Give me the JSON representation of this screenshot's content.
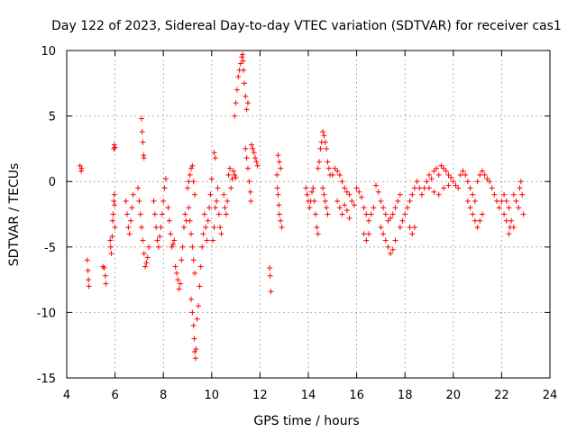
{
  "chart_data": {
    "type": "scatter",
    "title": "Day 122 of 2023, Sidereal Day-to-day VTEC variation (SDTVAR) for receiver cas1",
    "xlabel": "GPS time / hours",
    "ylabel": "SDTVAR / TECUs",
    "xlim": [
      4,
      24
    ],
    "ylim": [
      -15,
      10
    ],
    "xticks": [
      4,
      6,
      8,
      10,
      12,
      14,
      16,
      18,
      20,
      22,
      24
    ],
    "yticks": [
      -15,
      -10,
      -5,
      0,
      5,
      10
    ],
    "grid": true,
    "marker": "+",
    "color": "#ff0000",
    "series": [
      {
        "name": "SDTVAR",
        "points": [
          [
            4.55,
            1.2
          ],
          [
            4.6,
            0.8
          ],
          [
            4.62,
            1.0
          ],
          [
            4.85,
            -6.0
          ],
          [
            4.88,
            -6.8
          ],
          [
            4.9,
            -7.5
          ],
          [
            4.92,
            -8.0
          ],
          [
            5.5,
            -6.5
          ],
          [
            5.55,
            -6.6
          ],
          [
            5.6,
            -7.2
          ],
          [
            5.62,
            -7.8
          ],
          [
            5.8,
            -4.5
          ],
          [
            5.82,
            -5.0
          ],
          [
            5.85,
            -5.5
          ],
          [
            5.88,
            -4.2
          ],
          [
            5.9,
            -3.0
          ],
          [
            5.92,
            -2.5
          ],
          [
            5.95,
            -1.5
          ],
          [
            5.97,
            -1.0
          ],
          [
            5.98,
            -1.8
          ],
          [
            6.0,
            -3.5
          ],
          [
            5.95,
            2.5
          ],
          [
            5.97,
            2.8
          ],
          [
            6.0,
            2.6
          ],
          [
            6.45,
            -1.5
          ],
          [
            6.5,
            -2.5
          ],
          [
            6.55,
            -3.5
          ],
          [
            6.6,
            -4.0
          ],
          [
            6.65,
            -3.0
          ],
          [
            6.7,
            -2.0
          ],
          [
            6.75,
            -1.0
          ],
          [
            6.95,
            -0.5
          ],
          [
            7.0,
            -1.5
          ],
          [
            7.05,
            -2.5
          ],
          [
            7.1,
            -3.5
          ],
          [
            7.15,
            -4.5
          ],
          [
            7.2,
            -5.5
          ],
          [
            7.25,
            -6.5
          ],
          [
            7.3,
            -6.2
          ],
          [
            7.35,
            -5.8
          ],
          [
            7.4,
            -5.0
          ],
          [
            7.1,
            4.8
          ],
          [
            7.12,
            3.8
          ],
          [
            7.15,
            3.0
          ],
          [
            7.18,
            2.0
          ],
          [
            7.2,
            1.8
          ],
          [
            7.6,
            -1.5
          ],
          [
            7.65,
            -2.5
          ],
          [
            7.7,
            -3.5
          ],
          [
            7.75,
            -4.5
          ],
          [
            7.8,
            -5.0
          ],
          [
            7.85,
            -4.2
          ],
          [
            7.9,
            -3.5
          ],
          [
            7.95,
            -2.5
          ],
          [
            8.0,
            -1.5
          ],
          [
            8.05,
            -0.5
          ],
          [
            8.1,
            0.2
          ],
          [
            8.2,
            -2.0
          ],
          [
            8.25,
            -3.0
          ],
          [
            8.3,
            -4.0
          ],
          [
            8.35,
            -5.0
          ],
          [
            8.4,
            -4.8
          ],
          [
            8.45,
            -4.5
          ],
          [
            8.5,
            -6.5
          ],
          [
            8.55,
            -7.0
          ],
          [
            8.6,
            -7.5
          ],
          [
            8.65,
            -8.2
          ],
          [
            8.7,
            -7.8
          ],
          [
            8.75,
            -6.0
          ],
          [
            8.8,
            -5.0
          ],
          [
            8.85,
            -3.5
          ],
          [
            8.9,
            -2.5
          ],
          [
            8.95,
            -3.0
          ],
          [
            9.0,
            -0.5
          ],
          [
            9.05,
            0.0
          ],
          [
            9.1,
            0.5
          ],
          [
            9.15,
            1.0
          ],
          [
            9.2,
            1.2
          ],
          [
            9.25,
            0.0
          ],
          [
            9.3,
            -1.0
          ],
          [
            9.05,
            -2.0
          ],
          [
            9.1,
            -3.0
          ],
          [
            9.15,
            -4.0
          ],
          [
            9.2,
            -5.0
          ],
          [
            9.25,
            -6.0
          ],
          [
            9.3,
            -7.0
          ],
          [
            9.15,
            -9.0
          ],
          [
            9.2,
            -10.0
          ],
          [
            9.25,
            -11.0
          ],
          [
            9.28,
            -12.0
          ],
          [
            9.3,
            -13.0
          ],
          [
            9.33,
            -13.5
          ],
          [
            9.35,
            -12.8
          ],
          [
            9.4,
            -10.5
          ],
          [
            9.45,
            -9.5
          ],
          [
            9.5,
            -8.0
          ],
          [
            9.55,
            -6.5
          ],
          [
            9.6,
            -5.0
          ],
          [
            9.65,
            -4.0
          ],
          [
            9.7,
            -2.5
          ],
          [
            9.75,
            -3.5
          ],
          [
            9.8,
            -4.5
          ],
          [
            9.85,
            -3.0
          ],
          [
            9.9,
            -2.0
          ],
          [
            9.95,
            -1.0
          ],
          [
            10.0,
            0.2
          ],
          [
            10.05,
            -4.5
          ],
          [
            10.1,
            -3.5
          ],
          [
            10.15,
            -2.0
          ],
          [
            10.2,
            -1.5
          ],
          [
            10.25,
            -0.5
          ],
          [
            10.3,
            -2.5
          ],
          [
            10.35,
            -3.5
          ],
          [
            10.4,
            -4.0
          ],
          [
            10.1,
            2.2
          ],
          [
            10.15,
            1.8
          ],
          [
            10.5,
            -1.0
          ],
          [
            10.55,
            -2.0
          ],
          [
            10.6,
            -2.5
          ],
          [
            10.65,
            -1.5
          ],
          [
            10.7,
            0.5
          ],
          [
            10.75,
            1.0
          ],
          [
            10.8,
            -0.5
          ],
          [
            10.85,
            0.2
          ],
          [
            10.9,
            0.8
          ],
          [
            10.95,
            0.5
          ],
          [
            11.0,
            0.3
          ],
          [
            10.95,
            5.0
          ],
          [
            11.0,
            6.0
          ],
          [
            11.05,
            7.0
          ],
          [
            11.1,
            8.0
          ],
          [
            11.15,
            8.5
          ],
          [
            11.2,
            9.0
          ],
          [
            11.25,
            9.5
          ],
          [
            11.28,
            9.7
          ],
          [
            11.3,
            9.2
          ],
          [
            11.32,
            8.5
          ],
          [
            11.35,
            7.5
          ],
          [
            11.4,
            6.5
          ],
          [
            11.45,
            5.5
          ],
          [
            11.5,
            6.0
          ],
          [
            11.4,
            2.5
          ],
          [
            11.45,
            1.8
          ],
          [
            11.5,
            1.0
          ],
          [
            11.55,
            0.0
          ],
          [
            11.6,
            -0.8
          ],
          [
            11.62,
            -1.5
          ],
          [
            11.65,
            2.8
          ],
          [
            11.7,
            2.5
          ],
          [
            11.75,
            2.2
          ],
          [
            11.8,
            1.8
          ],
          [
            11.85,
            1.5
          ],
          [
            11.9,
            1.2
          ],
          [
            12.4,
            -6.6
          ],
          [
            12.42,
            -7.2
          ],
          [
            12.45,
            -8.4
          ],
          [
            12.7,
            0.5
          ],
          [
            12.72,
            -0.5
          ],
          [
            12.75,
            -1.0
          ],
          [
            12.78,
            -1.8
          ],
          [
            12.8,
            -2.5
          ],
          [
            12.85,
            -3.0
          ],
          [
            12.9,
            -3.5
          ],
          [
            12.75,
            2.0
          ],
          [
            12.8,
            1.5
          ],
          [
            12.85,
            1.0
          ],
          [
            13.9,
            -0.5
          ],
          [
            13.95,
            -1.0
          ],
          [
            14.0,
            -1.5
          ],
          [
            14.05,
            -2.0
          ],
          [
            14.1,
            -1.5
          ],
          [
            14.15,
            -0.8
          ],
          [
            14.2,
            -0.5
          ],
          [
            14.25,
            -1.5
          ],
          [
            14.3,
            -2.5
          ],
          [
            14.35,
            -3.5
          ],
          [
            14.4,
            -4.0
          ],
          [
            14.4,
            1.0
          ],
          [
            14.45,
            1.5
          ],
          [
            14.5,
            2.5
          ],
          [
            14.55,
            3.0
          ],
          [
            14.6,
            3.8
          ],
          [
            14.65,
            3.5
          ],
          [
            14.7,
            3.0
          ],
          [
            14.75,
            2.5
          ],
          [
            14.8,
            1.5
          ],
          [
            14.85,
            1.0
          ],
          [
            14.9,
            0.5
          ],
          [
            14.6,
            -0.5
          ],
          [
            14.65,
            -1.0
          ],
          [
            14.7,
            -1.5
          ],
          [
            14.75,
            -2.0
          ],
          [
            14.8,
            -2.5
          ],
          [
            15.0,
            0.5
          ],
          [
            15.1,
            1.0
          ],
          [
            15.2,
            0.8
          ],
          [
            15.3,
            0.5
          ],
          [
            15.4,
            0.0
          ],
          [
            15.5,
            -0.5
          ],
          [
            15.6,
            -0.8
          ],
          [
            15.7,
            -1.0
          ],
          [
            15.8,
            -1.5
          ],
          [
            15.9,
            -1.8
          ],
          [
            15.2,
            -1.5
          ],
          [
            15.3,
            -2.0
          ],
          [
            15.4,
            -2.5
          ],
          [
            15.5,
            -1.8
          ],
          [
            15.6,
            -2.2
          ],
          [
            15.7,
            -2.8
          ],
          [
            16.0,
            -0.5
          ],
          [
            16.1,
            -0.8
          ],
          [
            16.2,
            -1.2
          ],
          [
            16.3,
            -2.0
          ],
          [
            16.4,
            -2.5
          ],
          [
            16.5,
            -3.0
          ],
          [
            16.6,
            -2.5
          ],
          [
            16.7,
            -2.0
          ],
          [
            16.3,
            -4.0
          ],
          [
            16.4,
            -4.5
          ],
          [
            16.5,
            -4.0
          ],
          [
            16.8,
            -0.3
          ],
          [
            16.9,
            -0.8
          ],
          [
            17.0,
            -1.5
          ],
          [
            17.1,
            -2.0
          ],
          [
            17.2,
            -2.5
          ],
          [
            17.3,
            -3.0
          ],
          [
            17.4,
            -2.8
          ],
          [
            17.5,
            -2.5
          ],
          [
            17.6,
            -2.0
          ],
          [
            17.7,
            -1.5
          ],
          [
            17.8,
            -1.0
          ],
          [
            17.0,
            -3.5
          ],
          [
            17.1,
            -4.0
          ],
          [
            17.2,
            -4.5
          ],
          [
            17.3,
            -5.0
          ],
          [
            17.4,
            -5.5
          ],
          [
            17.5,
            -5.2
          ],
          [
            17.6,
            -4.5
          ],
          [
            17.8,
            -3.5
          ],
          [
            17.9,
            -3.0
          ],
          [
            18.0,
            -2.5
          ],
          [
            18.1,
            -2.0
          ],
          [
            18.2,
            -1.5
          ],
          [
            18.3,
            -1.0
          ],
          [
            18.4,
            -0.5
          ],
          [
            18.2,
            -3.5
          ],
          [
            18.3,
            -4.0
          ],
          [
            18.4,
            -3.5
          ],
          [
            18.5,
            0.0
          ],
          [
            18.6,
            -0.5
          ],
          [
            18.7,
            -1.0
          ],
          [
            18.8,
            -0.5
          ],
          [
            18.9,
            0.0
          ],
          [
            19.0,
            0.5
          ],
          [
            19.1,
            0.2
          ],
          [
            19.2,
            0.8
          ],
          [
            19.3,
            1.0
          ],
          [
            19.4,
            0.5
          ],
          [
            19.5,
            1.2
          ],
          [
            19.6,
            1.0
          ],
          [
            19.7,
            0.8
          ],
          [
            19.8,
            0.5
          ],
          [
            19.9,
            0.3
          ],
          [
            20.0,
            0.0
          ],
          [
            20.1,
            -0.3
          ],
          [
            20.2,
            -0.5
          ],
          [
            19.0,
            -0.5
          ],
          [
            19.2,
            -0.8
          ],
          [
            19.4,
            -1.0
          ],
          [
            19.6,
            -0.5
          ],
          [
            19.8,
            -0.3
          ],
          [
            20.3,
            0.5
          ],
          [
            20.4,
            0.8
          ],
          [
            20.5,
            0.5
          ],
          [
            20.6,
            0.0
          ],
          [
            20.7,
            -0.5
          ],
          [
            20.8,
            -1.0
          ],
          [
            20.9,
            -1.5
          ],
          [
            20.6,
            -1.5
          ],
          [
            20.7,
            -2.0
          ],
          [
            20.8,
            -2.5
          ],
          [
            20.9,
            -3.0
          ],
          [
            21.0,
            -3.5
          ],
          [
            21.1,
            -3.0
          ],
          [
            21.2,
            -2.5
          ],
          [
            21.0,
            0.0
          ],
          [
            21.1,
            0.5
          ],
          [
            21.2,
            0.8
          ],
          [
            21.3,
            0.5
          ],
          [
            21.4,
            0.2
          ],
          [
            21.5,
            0.0
          ],
          [
            21.6,
            -0.5
          ],
          [
            21.7,
            -1.0
          ],
          [
            21.8,
            -1.5
          ],
          [
            21.9,
            -2.0
          ],
          [
            22.0,
            -1.5
          ],
          [
            22.1,
            -1.0
          ],
          [
            22.2,
            -1.5
          ],
          [
            22.3,
            -2.0
          ],
          [
            22.4,
            -3.0
          ],
          [
            22.5,
            -3.5
          ],
          [
            22.1,
            -2.5
          ],
          [
            22.2,
            -3.0
          ],
          [
            22.3,
            -4.0
          ],
          [
            22.35,
            -3.5
          ],
          [
            22.5,
            -1.0
          ],
          [
            22.6,
            -1.5
          ],
          [
            22.7,
            -2.0
          ],
          [
            22.75,
            -0.5
          ],
          [
            22.8,
            0.0
          ],
          [
            22.85,
            -1.0
          ],
          [
            22.9,
            -2.5
          ]
        ]
      }
    ]
  }
}
